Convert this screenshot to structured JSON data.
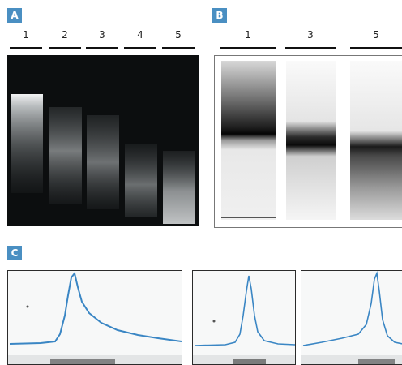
{
  "panel_a": {
    "badge": "A",
    "lanes": [
      "1",
      "2",
      "3",
      "4",
      "5"
    ]
  },
  "panel_b": {
    "badge": "B",
    "lanes": [
      "1",
      "3",
      "5"
    ]
  },
  "panel_c": {
    "badge": "C"
  },
  "colors": {
    "badge": "#4a8fc2",
    "gel_background": "#0c0e0f",
    "trace": "#3a86c4"
  }
}
